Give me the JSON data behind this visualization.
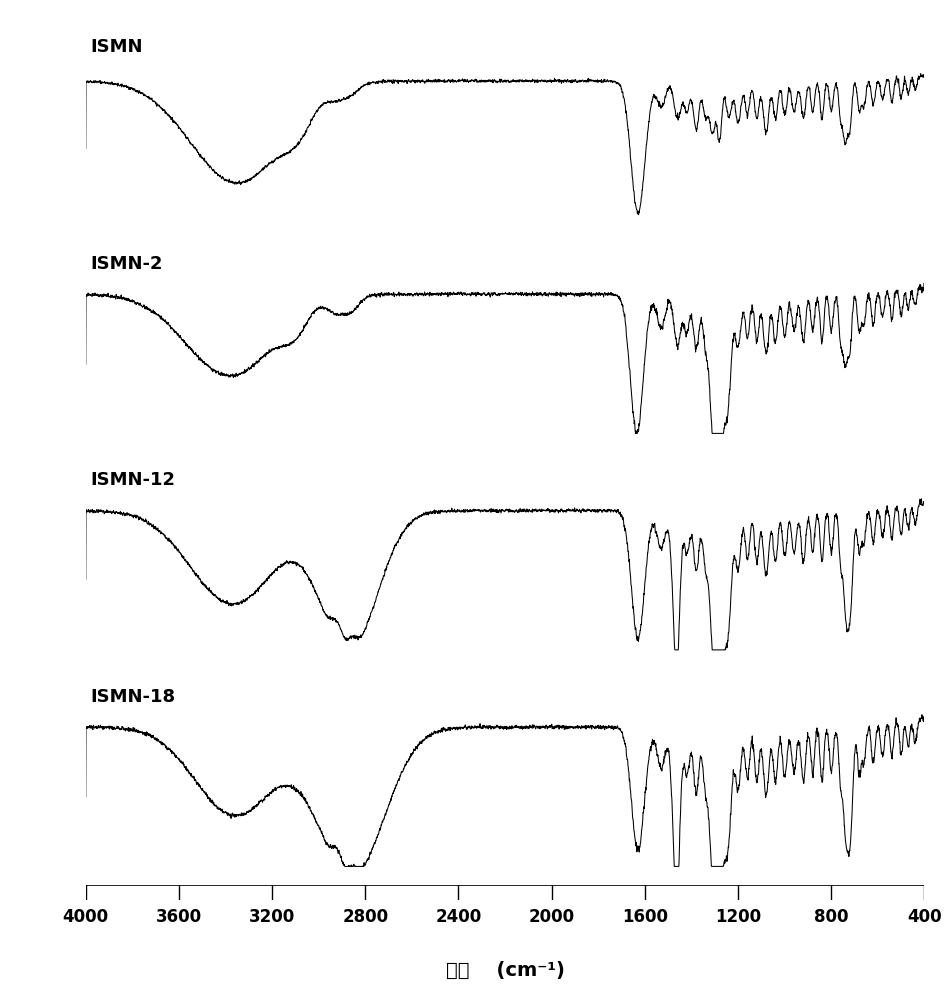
{
  "labels": [
    "ISMN",
    "ISMN-2",
    "ISMN-12",
    "ISMN-18"
  ],
  "x_ticks": [
    4000,
    3600,
    3200,
    2800,
    2400,
    2000,
    1600,
    1200,
    800,
    400
  ],
  "xlabel": "波长    (cm⁻¹)",
  "x_min": 400,
  "x_max": 4000,
  "background_color": "#ffffff",
  "line_color": "#000000",
  "label_fontsize": 13,
  "tick_fontsize": 12
}
